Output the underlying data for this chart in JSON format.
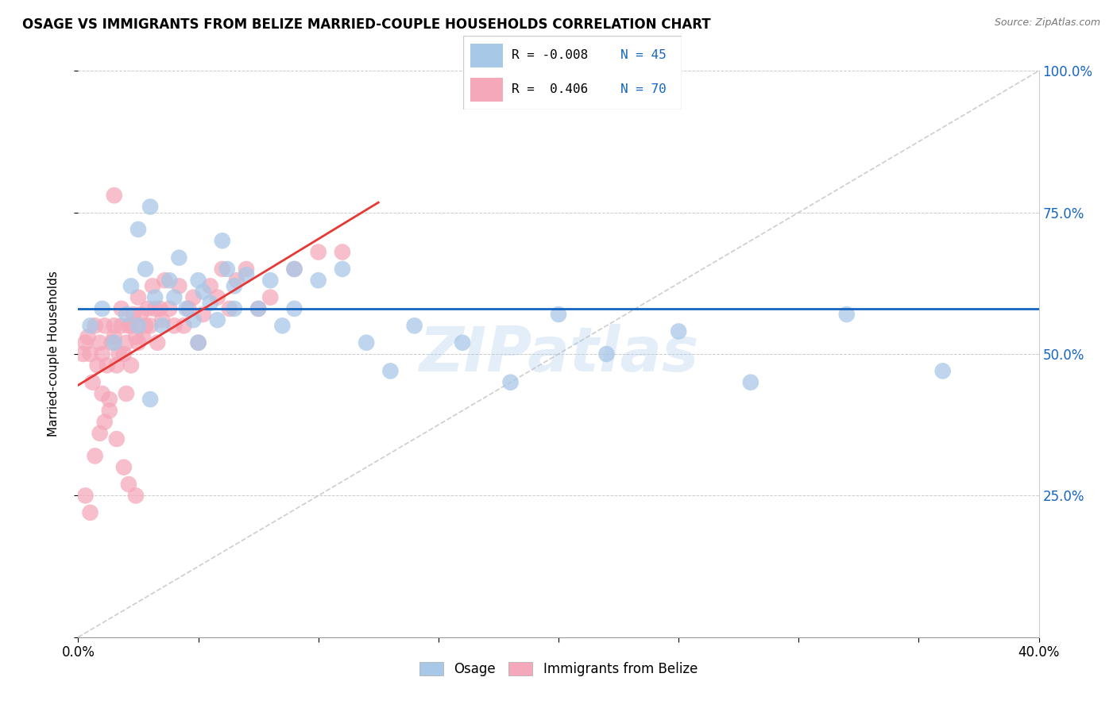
{
  "title": "OSAGE VS IMMIGRANTS FROM BELIZE MARRIED-COUPLE HOUSEHOLDS CORRELATION CHART",
  "source": "Source: ZipAtlas.com",
  "ylabel": "Married-couple Households",
  "xlim": [
    0.0,
    0.4
  ],
  "ylim": [
    0.0,
    1.0
  ],
  "xtick_vals": [
    0.0,
    0.05,
    0.1,
    0.15,
    0.2,
    0.25,
    0.3,
    0.35,
    0.4
  ],
  "xtick_labels_show": {
    "0.0": "0.0%",
    "0.40": "40.0%"
  },
  "ytick_vals": [
    0.0,
    0.25,
    0.5,
    0.75,
    1.0
  ],
  "ytick_labels_right": [
    "",
    "25.0%",
    "50.0%",
    "75.0%",
    "100.0%"
  ],
  "color_blue": "#a8c8e8",
  "color_pink": "#f5a8ba",
  "trend_blue": "#1565c0",
  "trend_pink": "#e53935",
  "diag_color": "#c8c8c8",
  "watermark": "ZIPatlas",
  "blue_R": -0.008,
  "blue_N": 45,
  "pink_R": 0.406,
  "pink_N": 70,
  "blue_dots_x": [
    0.005,
    0.01,
    0.015,
    0.02,
    0.022,
    0.025,
    0.028,
    0.03,
    0.032,
    0.035,
    0.038,
    0.04,
    0.042,
    0.045,
    0.048,
    0.05,
    0.052,
    0.055,
    0.058,
    0.06,
    0.062,
    0.065,
    0.07,
    0.075,
    0.08,
    0.085,
    0.09,
    0.1,
    0.11,
    0.12,
    0.13,
    0.14,
    0.16,
    0.18,
    0.2,
    0.22,
    0.25,
    0.28,
    0.32,
    0.36,
    0.025,
    0.03,
    0.05,
    0.065,
    0.09
  ],
  "blue_dots_y": [
    0.55,
    0.58,
    0.52,
    0.57,
    0.62,
    0.72,
    0.65,
    0.76,
    0.6,
    0.55,
    0.63,
    0.6,
    0.67,
    0.58,
    0.56,
    0.63,
    0.61,
    0.59,
    0.56,
    0.7,
    0.65,
    0.62,
    0.64,
    0.58,
    0.63,
    0.55,
    0.65,
    0.63,
    0.65,
    0.52,
    0.47,
    0.55,
    0.52,
    0.45,
    0.57,
    0.5,
    0.54,
    0.45,
    0.57,
    0.47,
    0.55,
    0.42,
    0.52,
    0.58,
    0.58
  ],
  "pink_dots_x": [
    0.002,
    0.003,
    0.004,
    0.005,
    0.006,
    0.007,
    0.008,
    0.009,
    0.01,
    0.01,
    0.011,
    0.012,
    0.013,
    0.014,
    0.015,
    0.015,
    0.016,
    0.017,
    0.018,
    0.018,
    0.019,
    0.02,
    0.02,
    0.021,
    0.022,
    0.022,
    0.023,
    0.024,
    0.025,
    0.025,
    0.026,
    0.027,
    0.028,
    0.029,
    0.03,
    0.031,
    0.032,
    0.033,
    0.034,
    0.035,
    0.036,
    0.038,
    0.04,
    0.042,
    0.044,
    0.046,
    0.048,
    0.05,
    0.052,
    0.055,
    0.058,
    0.06,
    0.063,
    0.066,
    0.07,
    0.075,
    0.08,
    0.09,
    0.1,
    0.11,
    0.003,
    0.005,
    0.007,
    0.009,
    0.011,
    0.013,
    0.016,
    0.019,
    0.021,
    0.024
  ],
  "pink_dots_y": [
    0.5,
    0.52,
    0.53,
    0.5,
    0.45,
    0.55,
    0.48,
    0.52,
    0.5,
    0.43,
    0.55,
    0.48,
    0.42,
    0.52,
    0.53,
    0.55,
    0.48,
    0.5,
    0.55,
    0.58,
    0.5,
    0.52,
    0.43,
    0.55,
    0.55,
    0.48,
    0.57,
    0.53,
    0.52,
    0.6,
    0.57,
    0.53,
    0.55,
    0.58,
    0.55,
    0.62,
    0.58,
    0.52,
    0.58,
    0.56,
    0.63,
    0.58,
    0.55,
    0.62,
    0.55,
    0.58,
    0.6,
    0.52,
    0.57,
    0.62,
    0.6,
    0.65,
    0.58,
    0.63,
    0.65,
    0.58,
    0.6,
    0.65,
    0.68,
    0.68,
    0.25,
    0.22,
    0.32,
    0.36,
    0.38,
    0.4,
    0.35,
    0.3,
    0.27,
    0.25
  ],
  "pink_high_x": [
    0.015
  ],
  "pink_high_y": [
    0.78
  ]
}
